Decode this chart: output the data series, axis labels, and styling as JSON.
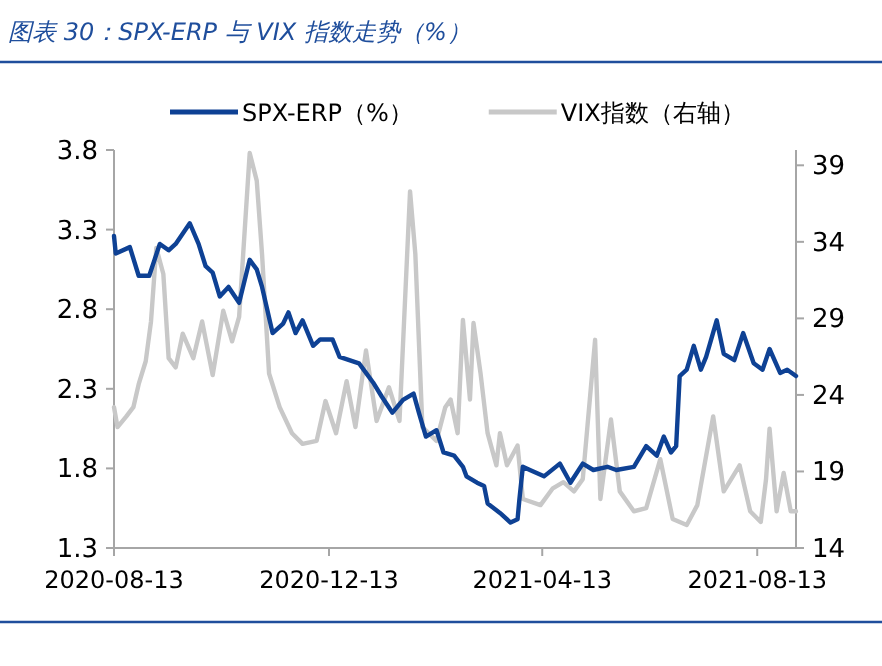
{
  "chart_data": {
    "type": "line",
    "title": "图表 30：SPX-ERP 与 VIX 指数走势（%）",
    "legend": "top",
    "grid": false,
    "marker": "none",
    "line_style": "solid",
    "xlim": [
      "2020-08-13",
      "2021-09-04"
    ],
    "xticks": [
      "2020-08-13",
      "2020-12-13",
      "2021-04-13",
      "2021-08-13"
    ],
    "ylim": [
      1.3,
      3.8
    ],
    "yticks": [
      1.3,
      1.8,
      2.3,
      2.8,
      3.3,
      3.8
    ],
    "y2lim": [
      14,
      40
    ],
    "y2ticks": [
      14,
      19,
      24,
      29,
      34,
      39
    ],
    "series": [
      {
        "name": "VIX指数（右轴）",
        "color": "#c8c8c8",
        "axis": "y2",
        "x": [
          "2020-08-13",
          "2020-08-15",
          "2020-08-20",
          "2020-08-24",
          "2020-08-27",
          "2020-08-31",
          "2020-09-03",
          "2020-09-06",
          "2020-09-10",
          "2020-09-13",
          "2020-09-17",
          "2020-09-21",
          "2020-09-27",
          "2020-10-02",
          "2020-10-08",
          "2020-10-14",
          "2020-10-19",
          "2020-10-23",
          "2020-10-29",
          "2020-11-02",
          "2020-11-05",
          "2020-11-09",
          "2020-11-15",
          "2020-11-22",
          "2020-11-28",
          "2020-12-06",
          "2020-12-11",
          "2020-12-17",
          "2020-12-23",
          "2020-12-28",
          "2021-01-03",
          "2021-01-09",
          "2021-01-16",
          "2021-01-22",
          "2021-01-28",
          "2021-01-31",
          "2021-02-04",
          "2021-02-12",
          "2021-02-17",
          "2021-02-20",
          "2021-02-24",
          "2021-02-27",
          "2021-03-03",
          "2021-03-05",
          "2021-03-09",
          "2021-03-13",
          "2021-03-18",
          "2021-03-20",
          "2021-03-24",
          "2021-03-30",
          "2021-04-02",
          "2021-04-12",
          "2021-04-19",
          "2021-04-25",
          "2021-05-01",
          "2021-05-06",
          "2021-05-13",
          "2021-05-16",
          "2021-05-22",
          "2021-05-27",
          "2021-06-04",
          "2021-06-11",
          "2021-06-19",
          "2021-06-26",
          "2021-07-04",
          "2021-07-10",
          "2021-07-19",
          "2021-07-25",
          "2021-08-03",
          "2021-08-09",
          "2021-08-15",
          "2021-08-18",
          "2021-08-20",
          "2021-08-24",
          "2021-08-28",
          "2021-09-01",
          "2021-09-04"
        ],
        "values": [
          23.2,
          21.9,
          22.6,
          23.2,
          24.7,
          26.2,
          28.8,
          33.6,
          31.9,
          26.4,
          25.8,
          28.0,
          26.4,
          28.8,
          25.3,
          29.5,
          27.5,
          29.1,
          39.8,
          38.0,
          33.2,
          25.4,
          23.2,
          21.5,
          20.8,
          21.0,
          23.6,
          21.5,
          24.9,
          21.9,
          26.9,
          22.3,
          24.5,
          22.3,
          37.3,
          33.2,
          21.9,
          21.0,
          23.2,
          23.7,
          21.5,
          28.9,
          23.7,
          28.7,
          25.4,
          21.5,
          19.4,
          21.5,
          19.4,
          20.7,
          17.2,
          16.8,
          17.9,
          18.3,
          17.7,
          18.5,
          27.6,
          17.2,
          22.4,
          17.7,
          16.4,
          16.6,
          19.8,
          15.9,
          15.5,
          16.8,
          22.6,
          17.7,
          19.4,
          16.4,
          15.7,
          18.5,
          21.8,
          16.4,
          18.9,
          16.4,
          16.4
        ]
      },
      {
        "name": "SPX-ERP（%）",
        "color": "#0e4194",
        "x": [
          "2020-08-13",
          "2020-08-14",
          "2020-08-22",
          "2020-08-27",
          "2020-09-02",
          "2020-09-08",
          "2020-09-13",
          "2020-09-17",
          "2020-09-25",
          "2020-09-30",
          "2020-10-04",
          "2020-10-08",
          "2020-10-12",
          "2020-10-17",
          "2020-10-23",
          "2020-10-29",
          "2020-11-02",
          "2020-11-05",
          "2020-11-11",
          "2020-11-17",
          "2020-11-20",
          "2020-11-24",
          "2020-11-28",
          "2020-12-04",
          "2020-12-08",
          "2020-12-15",
          "2020-12-19",
          "2020-12-30",
          "2021-01-03",
          "2021-01-07",
          "2021-01-12",
          "2021-01-18",
          "2021-01-24",
          "2021-01-30",
          "2021-02-02",
          "2021-02-06",
          "2021-02-12",
          "2021-02-16",
          "2021-02-22",
          "2021-02-27",
          "2021-03-01",
          "2021-03-07",
          "2021-03-11",
          "2021-03-13",
          "2021-03-20",
          "2021-03-26",
          "2021-03-30",
          "2021-03-31",
          "2021-04-02",
          "2021-04-06",
          "2021-04-14",
          "2021-04-23",
          "2021-04-29",
          "2021-05-06",
          "2021-05-12",
          "2021-05-20",
          "2021-05-25",
          "2021-06-04",
          "2021-06-11",
          "2021-06-17",
          "2021-06-21",
          "2021-06-25",
          "2021-06-28",
          "2021-06-30",
          "2021-07-04",
          "2021-07-08",
          "2021-07-12",
          "2021-07-15",
          "2021-07-21",
          "2021-07-25",
          "2021-07-31",
          "2021-08-05",
          "2021-08-11",
          "2021-08-16",
          "2021-08-20",
          "2021-08-26",
          "2021-08-30",
          "2021-09-04"
        ],
        "values": [
          3.26,
          3.15,
          3.19,
          3.01,
          3.01,
          3.21,
          3.17,
          3.21,
          3.34,
          3.21,
          3.07,
          3.03,
          2.88,
          2.94,
          2.84,
          3.11,
          3.05,
          2.94,
          2.65,
          2.71,
          2.78,
          2.65,
          2.73,
          2.57,
          2.61,
          2.61,
          2.5,
          2.46,
          2.4,
          2.34,
          2.25,
          2.15,
          2.23,
          2.27,
          2.15,
          2.0,
          2.04,
          1.9,
          1.88,
          1.81,
          1.75,
          1.71,
          1.69,
          1.58,
          1.52,
          1.46,
          1.48,
          1.6,
          1.81,
          1.79,
          1.75,
          1.83,
          1.71,
          1.83,
          1.79,
          1.81,
          1.79,
          1.81,
          1.94,
          1.88,
          2.0,
          1.9,
          1.94,
          2.38,
          2.42,
          2.57,
          2.42,
          2.5,
          2.73,
          2.52,
          2.48,
          2.65,
          2.46,
          2.42,
          2.55,
          2.4,
          2.42,
          2.38
        ]
      }
    ]
  }
}
